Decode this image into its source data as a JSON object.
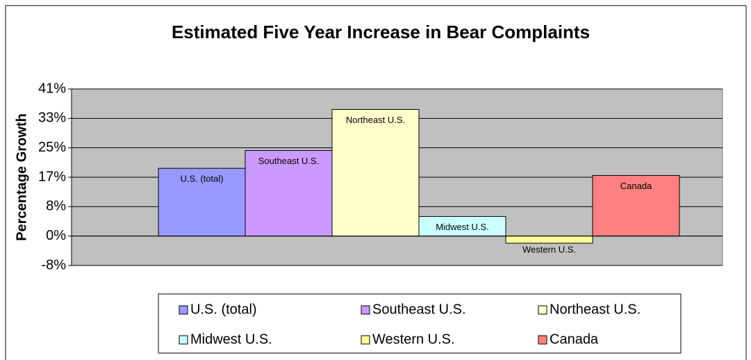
{
  "chart_data": {
    "type": "bar",
    "title": "Estimated Five Year Increase in Bear Complaints",
    "y_label": "Percentage Growth",
    "categories": [
      null
    ],
    "series": [
      {
        "name": "U.S. (total)",
        "color": "#9999ff",
        "values": [
          19
        ]
      },
      {
        "name": "Southeast U.S.",
        "color": "#cc99ff",
        "values": [
          24
        ]
      },
      {
        "name": "Northeast U.S.",
        "color": "#ffffcc",
        "values": [
          35.5
        ]
      },
      {
        "name": "Midwest U.S.",
        "color": "#ccffff",
        "values": [
          5.5
        ]
      },
      {
        "name": "Western U.S.",
        "color": "#ffff99",
        "values": [
          -2
        ]
      },
      {
        "name": "Canada",
        "color": "#ff8080",
        "values": [
          17
        ]
      }
    ],
    "ylim": [
      -8.25,
      41.25
    ],
    "yticks": [
      {
        "value": -8.25,
        "label": "-8%"
      },
      {
        "value": 0,
        "label": "0%"
      },
      {
        "value": 8.25,
        "label": "8%"
      },
      {
        "value": 16.5,
        "label": "17%"
      },
      {
        "value": 24.75,
        "label": "25%"
      },
      {
        "value": 33,
        "label": "33%"
      },
      {
        "value": 41.25,
        "label": "41%"
      }
    ],
    "grid": true,
    "legend": "bottom"
  }
}
